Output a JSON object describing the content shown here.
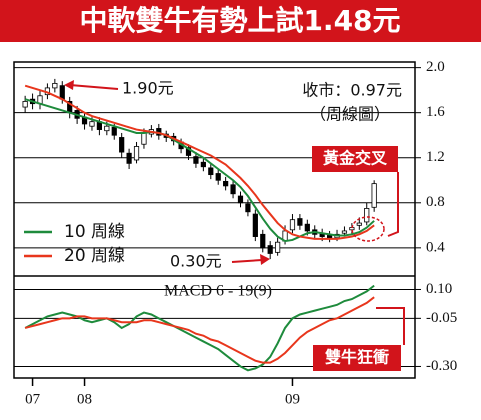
{
  "chart_data": [
    {
      "type": "candlestick",
      "title": "中軟雙牛有勢上試1.48元",
      "x": [
        0,
        1,
        2,
        3,
        4,
        5,
        6,
        7,
        8,
        9,
        10,
        11,
        12,
        13,
        14,
        15,
        16,
        17,
        18,
        19,
        20,
        21,
        22,
        23,
        24,
        25,
        26,
        27,
        28,
        29,
        30,
        31,
        32,
        33,
        34,
        35,
        36,
        37,
        38,
        39,
        40,
        41,
        42,
        43,
        44,
        45,
        46,
        47
      ],
      "open": [
        1.65,
        1.72,
        1.68,
        1.76,
        1.82,
        1.84,
        1.7,
        1.62,
        1.56,
        1.48,
        1.52,
        1.44,
        1.47,
        1.38,
        1.24,
        1.18,
        1.32,
        1.41,
        1.46,
        1.41,
        1.39,
        1.34,
        1.29,
        1.21,
        1.16,
        1.11,
        1.06,
        0.99,
        0.96,
        0.86,
        0.79,
        0.7,
        0.52,
        0.42,
        0.36,
        0.46,
        0.56,
        0.66,
        0.61,
        0.56,
        0.53,
        0.51,
        0.49,
        0.53,
        0.56,
        0.6,
        0.63,
        0.76
      ],
      "high": [
        1.75,
        1.77,
        1.8,
        1.86,
        1.9,
        1.88,
        1.74,
        1.66,
        1.6,
        1.56,
        1.56,
        1.52,
        1.5,
        1.42,
        1.28,
        1.34,
        1.46,
        1.49,
        1.5,
        1.44,
        1.42,
        1.37,
        1.32,
        1.25,
        1.2,
        1.15,
        1.1,
        1.03,
        1.0,
        0.9,
        0.83,
        0.74,
        0.56,
        0.46,
        0.49,
        0.6,
        0.7,
        0.7,
        0.65,
        0.6,
        0.57,
        0.55,
        0.56,
        0.59,
        0.62,
        0.67,
        0.8,
        1.0
      ],
      "low": [
        1.6,
        1.63,
        1.63,
        1.72,
        1.78,
        1.68,
        1.55,
        1.5,
        1.45,
        1.44,
        1.4,
        1.4,
        1.36,
        1.2,
        1.1,
        1.15,
        1.28,
        1.38,
        1.36,
        1.34,
        1.31,
        1.24,
        1.18,
        1.11,
        1.08,
        1.01,
        0.96,
        0.91,
        0.84,
        0.76,
        0.68,
        0.46,
        0.36,
        0.3,
        0.33,
        0.43,
        0.53,
        0.56,
        0.51,
        0.48,
        0.46,
        0.45,
        0.46,
        0.5,
        0.52,
        0.56,
        0.6,
        0.72
      ],
      "close": [
        1.7,
        1.68,
        1.75,
        1.82,
        1.86,
        1.72,
        1.6,
        1.55,
        1.5,
        1.52,
        1.45,
        1.48,
        1.4,
        1.25,
        1.15,
        1.3,
        1.42,
        1.45,
        1.4,
        1.38,
        1.35,
        1.28,
        1.22,
        1.15,
        1.12,
        1.05,
        1.0,
        0.95,
        0.88,
        0.8,
        0.72,
        0.5,
        0.4,
        0.35,
        0.45,
        0.55,
        0.65,
        0.6,
        0.55,
        0.52,
        0.5,
        0.48,
        0.52,
        0.55,
        0.58,
        0.62,
        0.75,
        0.97
      ],
      "series": [
        {
          "name": "10 周線",
          "color": "#1e8b3c",
          "values": [
            1.72,
            1.7,
            1.68,
            1.66,
            1.64,
            1.62,
            1.6,
            1.58,
            1.56,
            1.54,
            1.52,
            1.5,
            1.48,
            1.46,
            1.44,
            1.42,
            1.42,
            1.43,
            1.42,
            1.4,
            1.36,
            1.32,
            1.28,
            1.24,
            1.2,
            1.15,
            1.1,
            1.05,
            1.0,
            0.94,
            0.86,
            0.76,
            0.66,
            0.57,
            0.5,
            0.46,
            0.47,
            0.5,
            0.53,
            0.54,
            0.53,
            0.52,
            0.51,
            0.51,
            0.52,
            0.54,
            0.58,
            0.64
          ]
        },
        {
          "name": "20 周線",
          "color": "#e8361c",
          "values": [
            1.84,
            1.82,
            1.8,
            1.78,
            1.75,
            1.72,
            1.68,
            1.64,
            1.6,
            1.57,
            1.55,
            1.53,
            1.51,
            1.49,
            1.47,
            1.45,
            1.44,
            1.43,
            1.42,
            1.4,
            1.37,
            1.34,
            1.31,
            1.28,
            1.25,
            1.22,
            1.18,
            1.14,
            1.08,
            1.02,
            0.95,
            0.87,
            0.78,
            0.7,
            0.62,
            0.56,
            0.52,
            0.5,
            0.49,
            0.48,
            0.48,
            0.48,
            0.48,
            0.49,
            0.5,
            0.52,
            0.55,
            0.6
          ]
        }
      ],
      "xlim": [
        -1.5,
        52.5
      ],
      "ylim": [
        0.15,
        2.05
      ],
      "yticks": [
        {
          "value": 2,
          "label": "2.0"
        },
        1.6,
        1.2,
        0.8,
        0.4
      ],
      "grid": true,
      "annotations": [
        "1.90元",
        "收市：0.97元",
        "（周線圖）",
        "黃金交叉",
        "0.30元"
      ]
    },
    {
      "type": "line",
      "title": "MACD 6 - 19(9)",
      "x": [
        0,
        1,
        2,
        3,
        4,
        5,
        6,
        7,
        8,
        9,
        10,
        11,
        12,
        13,
        14,
        15,
        16,
        17,
        18,
        19,
        20,
        21,
        22,
        23,
        24,
        25,
        26,
        27,
        28,
        29,
        30,
        31,
        32,
        33,
        34,
        35,
        36,
        37,
        38,
        39,
        40,
        41,
        42,
        43,
        44,
        45,
        46,
        47
      ],
      "series": [
        {
          "color": "#1e8b3c",
          "values": [
            -0.1,
            -0.08,
            -0.06,
            -0.04,
            -0.03,
            -0.02,
            -0.03,
            -0.04,
            -0.06,
            -0.07,
            -0.06,
            -0.05,
            -0.07,
            -0.1,
            -0.08,
            -0.04,
            -0.02,
            -0.03,
            -0.05,
            -0.07,
            -0.09,
            -0.11,
            -0.13,
            -0.15,
            -0.17,
            -0.19,
            -0.21,
            -0.24,
            -0.27,
            -0.3,
            -0.32,
            -0.31,
            -0.29,
            -0.25,
            -0.18,
            -0.1,
            -0.05,
            -0.03,
            -0.02,
            -0.01,
            0.0,
            0.01,
            0.02,
            0.04,
            0.05,
            0.07,
            0.09,
            0.12
          ]
        },
        {
          "color": "#e8361c",
          "values": [
            -0.1,
            -0.09,
            -0.08,
            -0.07,
            -0.06,
            -0.05,
            -0.05,
            -0.04,
            -0.04,
            -0.05,
            -0.05,
            -0.05,
            -0.06,
            -0.07,
            -0.07,
            -0.07,
            -0.06,
            -0.06,
            -0.07,
            -0.08,
            -0.09,
            -0.1,
            -0.11,
            -0.13,
            -0.14,
            -0.16,
            -0.17,
            -0.19,
            -0.21,
            -0.23,
            -0.25,
            -0.27,
            -0.28,
            -0.28,
            -0.26,
            -0.23,
            -0.19,
            -0.15,
            -0.12,
            -0.1,
            -0.08,
            -0.06,
            -0.05,
            -0.03,
            -0.01,
            0.01,
            0.03,
            0.06
          ]
        }
      ],
      "xlim": [
        -1.5,
        52.5
      ],
      "ylim": [
        -0.36,
        0.17
      ],
      "yticks": [
        {
          "value": 0.1,
          "label": "0.10"
        },
        -0.05,
        {
          "value": -0.3,
          "label": "-0.30"
        }
      ],
      "grid": true,
      "xticks": [
        {
          "value": 1,
          "label": "07"
        },
        {
          "value": 8,
          "label": "08"
        },
        {
          "value": 36,
          "label": "09"
        }
      ],
      "annotations": [
        "雙牛狂衝"
      ]
    }
  ]
}
